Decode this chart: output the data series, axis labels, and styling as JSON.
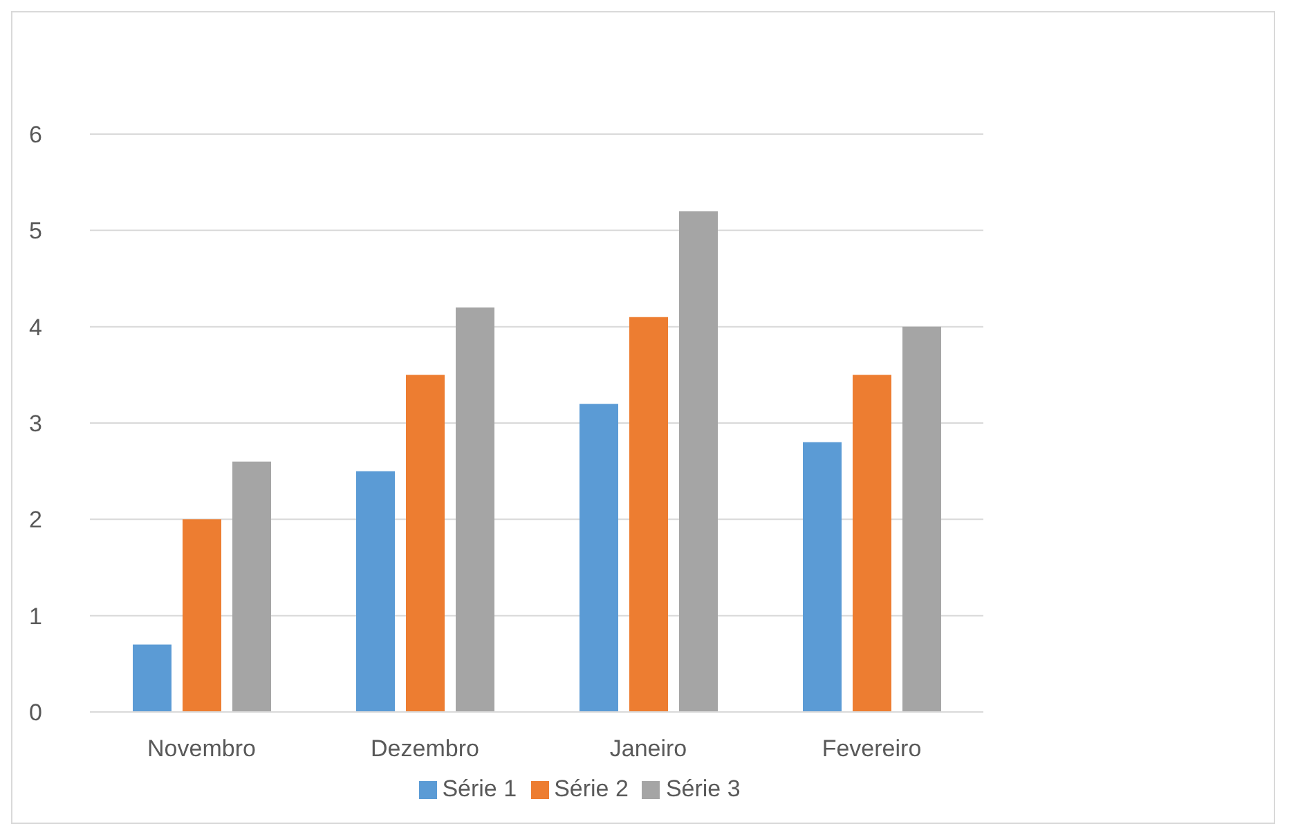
{
  "chart_data": {
    "type": "bar",
    "categories": [
      "Novembro",
      "Dezembro",
      "Janeiro",
      "Fevereiro"
    ],
    "series": [
      {
        "name": "Série 1",
        "color": "#5b9bd5",
        "values": [
          0.7,
          2.5,
          3.2,
          2.8
        ]
      },
      {
        "name": "Série 2",
        "color": "#ed7d31",
        "values": [
          2.0,
          3.5,
          4.1,
          3.5
        ]
      },
      {
        "name": "Série 3",
        "color": "#a5a5a5",
        "values": [
          2.6,
          4.2,
          5.2,
          4.0
        ]
      }
    ],
    "ylim": [
      0,
      6
    ],
    "yticks": [
      0,
      1,
      2,
      3,
      4,
      5,
      6
    ],
    "grid": "y",
    "legend": "bottom"
  }
}
